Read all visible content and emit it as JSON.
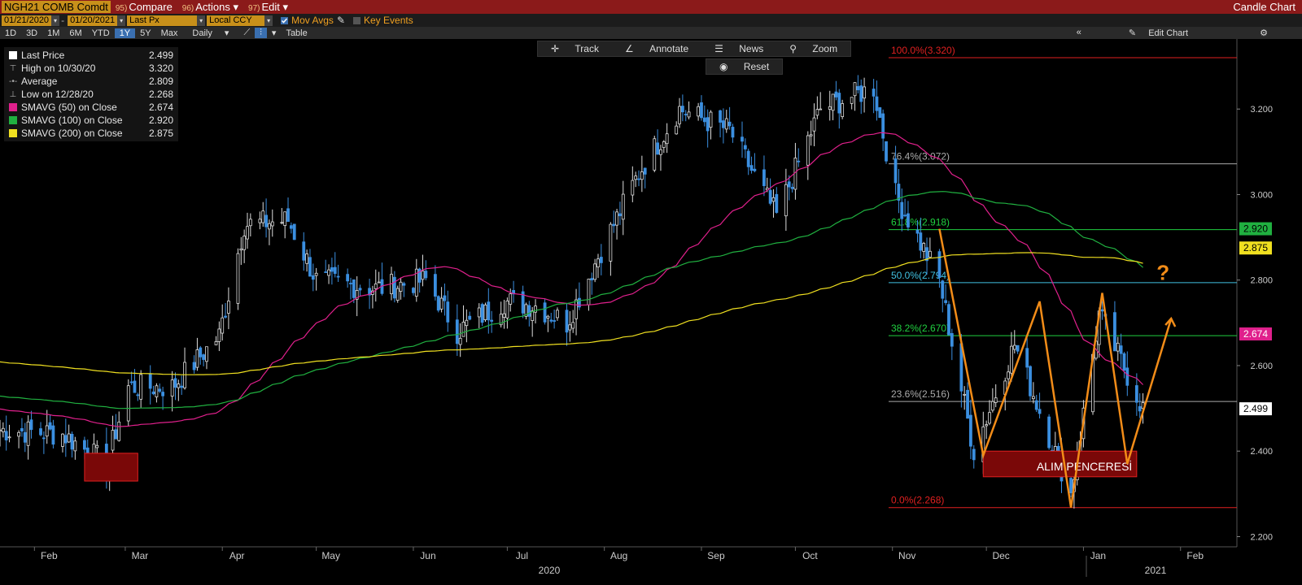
{
  "header": {
    "ticker": "NGH21 COMB Comdt",
    "menus": [
      {
        "num": "95)",
        "label": "Compare"
      },
      {
        "num": "96)",
        "label": "Actions"
      },
      {
        "num": "97)",
        "label": "Edit"
      }
    ],
    "title": "Candle Chart"
  },
  "fields": {
    "start_date": "01/21/2020",
    "end_date": "01/20/2021",
    "price_field": "Last Px",
    "currency": "Local CCY",
    "mov_avgs": "Mov Avgs",
    "key_events": "Key Events"
  },
  "periods": [
    "1D",
    "3D",
    "1M",
    "6M",
    "YTD",
    "1Y",
    "5Y",
    "Max"
  ],
  "selected_period": "1Y",
  "frequency": "Daily",
  "table_label": "Table",
  "edit_chart_label": "Edit Chart",
  "tools": {
    "track": "Track",
    "annotate": "Annotate",
    "news": "News",
    "zoom": "Zoom",
    "reset": "Reset"
  },
  "legend": [
    {
      "label": "Last Price",
      "value": "2.499",
      "color": "#ffffff",
      "icon": "square"
    },
    {
      "label": "High on 10/30/20",
      "value": "3.320",
      "color": "#aaaaaa",
      "icon": "high-marker"
    },
    {
      "label": "Average",
      "value": "2.809",
      "color": "#aaaaaa",
      "icon": "average-marker"
    },
    {
      "label": "Low on 12/28/20",
      "value": "2.268",
      "color": "#aaaaaa",
      "icon": "low-marker"
    },
    {
      "label": "SMAVG (50)  on Close",
      "value": "2.674",
      "color": "#e0208c",
      "icon": "square"
    },
    {
      "label": "SMAVG (100)  on Close",
      "value": "2.920",
      "color": "#20b040",
      "icon": "square"
    },
    {
      "label": "SMAVG (200)  on Close",
      "value": "2.875",
      "color": "#f0e020",
      "icon": "square"
    }
  ],
  "chart_data": {
    "type": "candlestick",
    "ylim": [
      2.18,
      3.36
    ],
    "y_ticks": [
      "2.200",
      "2.400",
      "2.600",
      "2.800",
      "3.000",
      "3.200"
    ],
    "x_month_labels": [
      "Feb",
      "Mar",
      "Apr",
      "May",
      "Jun",
      "Jul",
      "Aug",
      "Sep",
      "Oct",
      "Nov",
      "Dec",
      "Jan",
      "Feb"
    ],
    "year_labels": [
      "2020",
      "2021"
    ],
    "close_series_approx": [
      [
        "2020-01-21",
        2.45
      ],
      [
        "2020-02-10",
        2.44
      ],
      [
        "2020-02-24",
        2.37
      ],
      [
        "2020-03-02",
        2.55
      ],
      [
        "2020-03-16",
        2.55
      ],
      [
        "2020-03-31",
        2.67
      ],
      [
        "2020-04-08",
        2.93
      ],
      [
        "2020-04-22",
        2.94
      ],
      [
        "2020-05-01",
        2.8
      ],
      [
        "2020-05-20",
        2.78
      ],
      [
        "2020-06-05",
        2.8
      ],
      [
        "2020-06-15",
        2.68
      ],
      [
        "2020-06-30",
        2.75
      ],
      [
        "2020-07-10",
        2.74
      ],
      [
        "2020-07-20",
        2.7
      ],
      [
        "2020-07-31",
        2.87
      ],
      [
        "2020-08-12",
        3.05
      ],
      [
        "2020-08-25",
        3.2
      ],
      [
        "2020-09-10",
        3.15
      ],
      [
        "2020-09-25",
        2.95
      ],
      [
        "2020-10-09",
        3.2
      ],
      [
        "2020-10-26",
        3.25
      ],
      [
        "2020-11-02",
        3.0
      ],
      [
        "2020-11-16",
        2.8
      ],
      [
        "2020-11-27",
        2.4
      ],
      [
        "2020-12-10",
        2.65
      ],
      [
        "2020-12-28",
        2.3
      ],
      [
        "2021-01-06",
        2.72
      ],
      [
        "2021-01-20",
        2.5
      ]
    ],
    "last_price": 2.499,
    "high": 3.32,
    "low": 2.268,
    "moving_averages": [
      {
        "name": "SMAVG (50)",
        "last": 2.674,
        "color": "#e0208c"
      },
      {
        "name": "SMAVG (100)",
        "last": 2.92,
        "color": "#20b040"
      },
      {
        "name": "SMAVG (200)",
        "last": 2.875,
        "color": "#f0e020"
      }
    ],
    "fibonacci": [
      {
        "label": "100.0%(3.320)",
        "value": 3.32,
        "color": "#e02020"
      },
      {
        "label": "76.4%(3.072)",
        "value": 3.072,
        "color": "#aaaaaa"
      },
      {
        "label": "61.8%(2.918)",
        "value": 2.918,
        "color": "#20d040"
      },
      {
        "label": "50.0%(2.794)",
        "value": 2.794,
        "color": "#40c0e0"
      },
      {
        "label": "38.2%(2.670)",
        "value": 2.67,
        "color": "#20d040"
      },
      {
        "label": "23.6%(2.516)",
        "value": 2.516,
        "color": "#aaaaaa"
      },
      {
        "label": "0.0%(2.268)",
        "value": 2.268,
        "color": "#e02020"
      }
    ],
    "price_tags": [
      {
        "value": "2.920",
        "y": 2.92,
        "bg": "#20b040",
        "fg": "#000000"
      },
      {
        "value": "2.875",
        "y": 2.875,
        "bg": "#f0e020",
        "fg": "#000000"
      },
      {
        "value": "2.674",
        "y": 2.674,
        "bg": "#e0208c",
        "fg": "#ffffff"
      },
      {
        "value": "2.499",
        "y": 2.499,
        "bg": "#ffffff",
        "fg": "#000000"
      }
    ],
    "annotations": {
      "buy_window_label": "ALIM PENCERESİ",
      "question_mark": "?"
    }
  }
}
